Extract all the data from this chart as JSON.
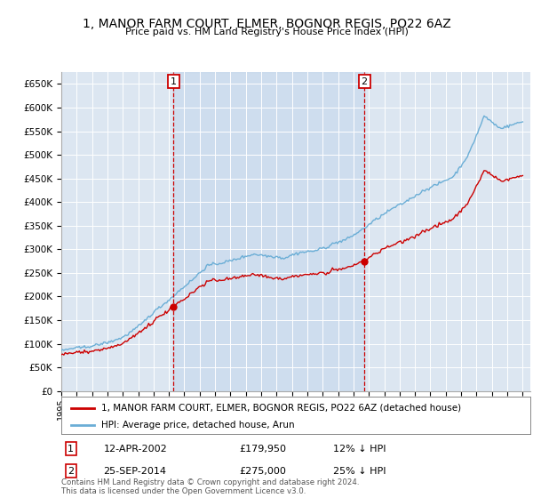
{
  "title": "1, MANOR FARM COURT, ELMER, BOGNOR REGIS, PO22 6AZ",
  "subtitle": "Price paid vs. HM Land Registry's House Price Index (HPI)",
  "legend_entry1": "1, MANOR FARM COURT, ELMER, BOGNOR REGIS, PO22 6AZ (detached house)",
  "legend_entry2": "HPI: Average price, detached house, Arun",
  "sale1_date": "12-APR-2002",
  "sale1_price": 179950,
  "sale1_label": "12% ↓ HPI",
  "sale2_date": "25-SEP-2014",
  "sale2_price": 275000,
  "sale2_label": "25% ↓ HPI",
  "footer": "Contains HM Land Registry data © Crown copyright and database right 2024.\nThis data is licensed under the Open Government Licence v3.0.",
  "hpi_color": "#6baed6",
  "price_color": "#cc0000",
  "vline_color": "#cc0000",
  "background_color": "#dce6f1",
  "highlight_color": "#c8d8ec",
  "ylim": [
    0,
    675000
  ],
  "xmin": 1995,
  "xmax": 2025.5
}
